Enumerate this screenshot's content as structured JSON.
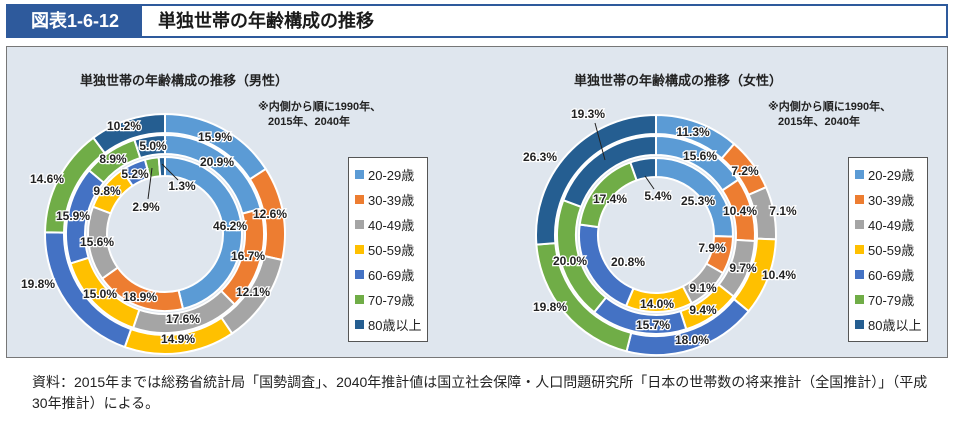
{
  "header": {
    "figure_id": "図表1-6-12",
    "title": "単独世帯の年齢構成の推移"
  },
  "colors": {
    "20-29歳": "#5b9bd5",
    "30-39歳": "#ed7d31",
    "40-49歳": "#a5a5a5",
    "50-59歳": "#ffc000",
    "60-69歳": "#4472c4",
    "70-79歳": "#70ad47",
    "80歳以上": "#255e91",
    "header": "#2e5a9c"
  },
  "legend": [
    "20-29歳",
    "30-39歳",
    "40-49歳",
    "50-59歳",
    "60-69歳",
    "70-79歳",
    "80歳以上"
  ],
  "chart_data": [
    {
      "type": "pie",
      "subtype": "multi-ring donut",
      "title": "単独世帯の年齢構成の推移（男性）",
      "note_line1": "※内側から順に1990年、",
      "note_line2": "2015年、2040年",
      "categories": [
        "20-29歳",
        "30-39歳",
        "40-49歳",
        "50-59歳",
        "60-69歳",
        "70-79歳",
        "80歳以上"
      ],
      "series": [
        {
          "name": "1990年",
          "values": [
            46.2,
            18.9,
            15.6,
            9.8,
            5.2,
            2.9,
            1.3
          ]
        },
        {
          "name": "2015年",
          "values": [
            20.9,
            16.7,
            17.6,
            15.0,
            15.9,
            8.9,
            5.0
          ]
        },
        {
          "name": "2040年",
          "values": [
            15.9,
            12.6,
            12.1,
            14.9,
            19.8,
            14.6,
            10.2
          ]
        }
      ]
    },
    {
      "type": "pie",
      "subtype": "multi-ring donut",
      "title": "単独世帯の年齢構成の推移（女性）",
      "note_line1": "※内側から順に1990年、",
      "note_line2": "2015年、2040年",
      "categories": [
        "20-29歳",
        "30-39歳",
        "40-49歳",
        "50-59歳",
        "60-69歳",
        "70-79歳",
        "80歳以上"
      ],
      "series": [
        {
          "name": "1990年",
          "values": [
            25.3,
            7.9,
            9.1,
            14.0,
            20.8,
            17.4,
            5.4
          ]
        },
        {
          "name": "2015年",
          "values": [
            15.6,
            10.4,
            9.7,
            9.4,
            15.7,
            20.0,
            19.3
          ]
        },
        {
          "name": "2040年",
          "values": [
            11.3,
            7.2,
            7.1,
            10.4,
            18.0,
            19.8,
            26.3
          ]
        }
      ]
    }
  ],
  "source": "資料：2015年までは総務省統計局「国勢調査」、2040年推計値は国立社会保障・人口問題研究所「日本の世帯数の将来推計（全国推計）」（平成30年推計）による。"
}
